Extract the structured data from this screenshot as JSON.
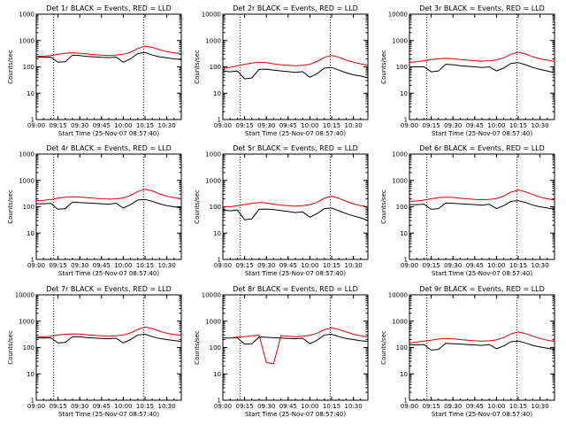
{
  "chart_data": {
    "type": "line",
    "y_scale": "log",
    "ylim": [
      1,
      10000
    ],
    "xlim": [
      "09:00",
      "10:40"
    ],
    "x_ticks": [
      "09:00",
      "09:15",
      "09:30",
      "09:45",
      "10:00",
      "10:15",
      "10:30"
    ],
    "y_ticks": [
      "1",
      "10",
      "100",
      "1000",
      "10000"
    ],
    "xlabel": "Start Time (25-Nov-07 08:57:40)",
    "ylabel": "Counts/sec",
    "vertical_dotted_lines": [
      "09:12",
      "10:14"
    ],
    "x_times": [
      "09:00",
      "09:05",
      "09:10",
      "09:15",
      "09:20",
      "09:25",
      "09:30",
      "09:35",
      "09:40",
      "09:45",
      "09:50",
      "09:55",
      "10:00",
      "10:05",
      "10:10",
      "10:15",
      "10:20",
      "10:25",
      "10:30",
      "10:35",
      "10:40"
    ],
    "series_colors": {
      "events": "#000000",
      "lld": "#dd0000"
    },
    "panels": [
      {
        "title": "Det 1r BLACK = Events, RED = LLD",
        "ymax_label": "1000",
        "events": [
          240,
          230,
          235,
          150,
          155,
          280,
          270,
          250,
          240,
          230,
          225,
          235,
          150,
          200,
          320,
          350,
          280,
          240,
          220,
          200,
          190
        ],
        "lld": [
          250,
          255,
          270,
          300,
          330,
          340,
          330,
          310,
          290,
          280,
          270,
          280,
          300,
          360,
          500,
          610,
          550,
          450,
          380,
          340,
          320
        ]
      },
      {
        "title": "Det 2r BLACK = Events, RED = LLD",
        "ymax_label": "10000",
        "events": [
          70,
          65,
          70,
          35,
          38,
          80,
          82,
          75,
          70,
          66,
          62,
          66,
          40,
          55,
          90,
          95,
          75,
          60,
          50,
          45,
          38
        ],
        "lld": [
          90,
          95,
          110,
          125,
          140,
          150,
          145,
          130,
          120,
          115,
          110,
          115,
          125,
          160,
          230,
          270,
          230,
          180,
          150,
          130,
          115
        ]
      },
      {
        "title": "Det 3r BLACK = Events, RED = LLD",
        "ymax_label": "10000",
        "events": [
          100,
          100,
          100,
          65,
          70,
          125,
          120,
          110,
          105,
          100,
          95,
          100,
          70,
          90,
          135,
          145,
          120,
          95,
          80,
          70,
          60
        ],
        "lld": [
          150,
          155,
          170,
          190,
          200,
          210,
          205,
          190,
          180,
          170,
          165,
          170,
          185,
          220,
          300,
          360,
          310,
          240,
          200,
          180,
          160
        ]
      },
      {
        "title": "Det 4r BLACK = Events, RED = LLD",
        "ymax_label": "1000",
        "events": [
          130,
          130,
          135,
          80,
          85,
          150,
          145,
          140,
          135,
          130,
          125,
          135,
          90,
          120,
          180,
          190,
          160,
          130,
          110,
          100,
          90
        ],
        "lld": [
          170,
          175,
          190,
          210,
          230,
          240,
          235,
          220,
          210,
          200,
          195,
          200,
          215,
          270,
          380,
          460,
          400,
          310,
          250,
          220,
          200
        ]
      },
      {
        "title": "Det 5r BLACK = Events, RED = LLD",
        "ymax_label": "1000",
        "events": [
          75,
          70,
          75,
          32,
          35,
          80,
          82,
          78,
          72,
          66,
          60,
          64,
          40,
          55,
          85,
          90,
          70,
          55,
          45,
          38,
          30
        ],
        "lld": [
          100,
          100,
          110,
          120,
          135,
          145,
          140,
          125,
          115,
          110,
          105,
          110,
          120,
          150,
          210,
          250,
          210,
          160,
          130,
          110,
          100
        ]
      },
      {
        "title": "Det 6r BLACK = Events, RED = LLD",
        "ymax_label": "1000",
        "events": [
          120,
          120,
          125,
          80,
          85,
          140,
          135,
          130,
          125,
          120,
          115,
          125,
          85,
          110,
          160,
          170,
          145,
          115,
          100,
          90,
          80
        ],
        "lld": [
          160,
          165,
          180,
          200,
          220,
          230,
          225,
          210,
          200,
          190,
          185,
          190,
          205,
          255,
          360,
          430,
          370,
          290,
          230,
          200,
          180
        ]
      },
      {
        "title": "Det 7r BLACK = Events, RED = LLD",
        "ymax_label": "10000",
        "events": [
          230,
          230,
          235,
          150,
          155,
          260,
          255,
          240,
          230,
          220,
          215,
          225,
          150,
          200,
          300,
          320,
          260,
          220,
          200,
          185,
          170
        ],
        "lld": [
          250,
          255,
          270,
          300,
          320,
          330,
          325,
          305,
          290,
          280,
          270,
          280,
          300,
          360,
          490,
          600,
          520,
          420,
          350,
          310,
          290
        ]
      },
      {
        "title": "Det 8r BLACK = Events, RED = LLD",
        "ymax_label": "10000",
        "events": [
          230,
          230,
          235,
          135,
          140,
          250,
          245,
          235,
          230,
          220,
          215,
          225,
          140,
          190,
          300,
          320,
          260,
          220,
          200,
          180,
          170
        ],
        "lld": [
          230,
          235,
          250,
          260,
          280,
          290,
          27,
          24,
          285,
          270,
          260,
          270,
          290,
          350,
          470,
          560,
          480,
          390,
          320,
          280,
          250
        ]
      },
      {
        "title": "Det 9r BLACK = Events, RED = LLD",
        "ymax_label": "10000",
        "events": [
          130,
          125,
          130,
          80,
          85,
          145,
          140,
          135,
          130,
          125,
          120,
          130,
          90,
          115,
          165,
          175,
          150,
          120,
          105,
          95,
          85
        ],
        "lld": [
          150,
          160,
          175,
          190,
          210,
          220,
          215,
          200,
          190,
          180,
          175,
          180,
          195,
          240,
          330,
          390,
          340,
          270,
          220,
          190,
          170
        ]
      }
    ]
  }
}
